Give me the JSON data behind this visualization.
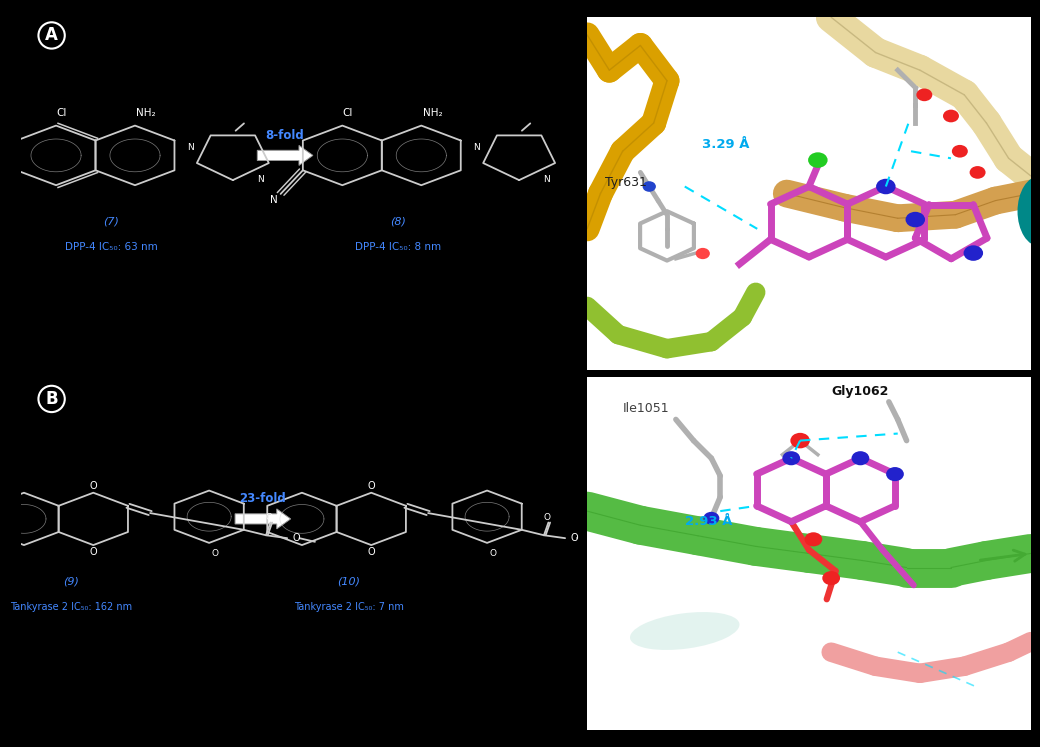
{
  "background_color": "#000000",
  "fig_width": 10.2,
  "fig_height": 7.27,
  "text_color_blue": "#4488FF",
  "text_color_white": "#FFFFFF",
  "panel_A": {
    "label": "A",
    "cmpd7_id": "(7)",
    "cmpd7_act": "DPP-4 IC₅₀: 63 nm",
    "cmpd8_id": "(8)",
    "cmpd8_act": "DPP-4 IC₅₀: 8 nm",
    "arrow_text": "8-fold",
    "protein_label1": "Tyr631",
    "distance1": "3.29 Å"
  },
  "panel_B": {
    "label": "B",
    "cmpd9_id": "(9)",
    "cmpd9_act": "Tankyrase 2 IC₅₀: 162 nm",
    "cmpd10_id": "(10)",
    "cmpd10_act": "Tankyrase 2 IC₅₀: 7 nm",
    "arrow_text": "23-fold",
    "protein_label1": "Ile1051",
    "protein_label2": "Gly1062",
    "distance2": "2.93 Å"
  }
}
